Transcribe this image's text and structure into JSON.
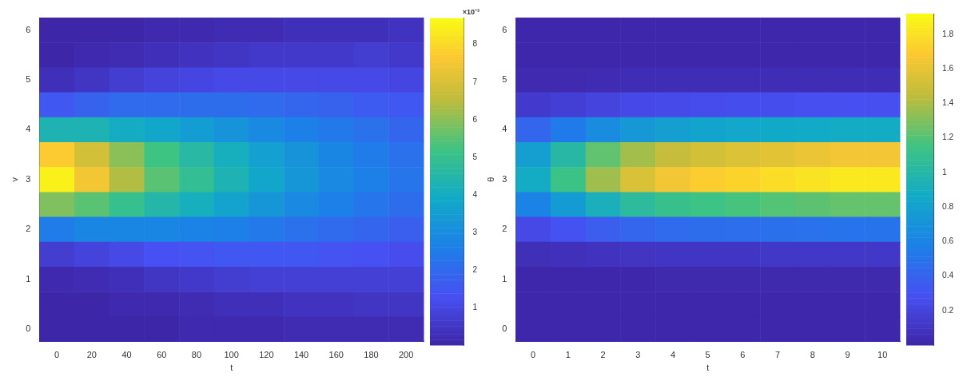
{
  "chart_data": [
    {
      "type": "heatmap",
      "xlabel": "t",
      "ylabel": "v",
      "clabel": "×10⁻³",
      "categories": [
        "0",
        "20",
        "40",
        "60",
        "80",
        "100",
        "120",
        "140",
        "160",
        "180",
        "200"
      ],
      "y_categories": [
        "6",
        null,
        "5",
        null,
        "4",
        null,
        "3",
        null,
        "2",
        null,
        "1",
        null,
        "0"
      ],
      "clim": [
        0,
        8.7
      ],
      "cticks": [
        1,
        2,
        3,
        4,
        5,
        6,
        7,
        8
      ],
      "cells": [
        [
          0.0,
          0.0,
          0.0,
          0.1,
          0.1,
          0.2,
          0.2,
          0.3,
          0.3,
          0.3,
          0.4
        ],
        [
          0.0,
          0.1,
          0.2,
          0.3,
          0.4,
          0.5,
          0.6,
          0.6,
          0.6,
          0.7,
          0.6
        ],
        [
          0.3,
          0.5,
          0.7,
          0.9,
          1.0,
          1.1,
          1.1,
          1.1,
          1.1,
          1.1,
          1.0
        ],
        [
          1.5,
          1.8,
          2.0,
          2.0,
          2.1,
          2.1,
          2.0,
          1.9,
          1.8,
          1.6,
          1.5
        ],
        [
          4.3,
          4.3,
          4.0,
          3.8,
          3.5,
          3.2,
          2.9,
          2.6,
          2.4,
          2.2,
          1.9
        ],
        [
          7.7,
          6.9,
          6.0,
          5.2,
          4.6,
          4.1,
          3.6,
          3.2,
          2.8,
          2.5,
          2.2
        ],
        [
          8.5,
          7.5,
          6.4,
          5.5,
          4.9,
          4.3,
          3.8,
          3.3,
          2.9,
          2.6,
          2.3
        ],
        [
          5.9,
          5.5,
          5.0,
          4.5,
          4.1,
          3.7,
          3.3,
          2.9,
          2.6,
          2.3,
          2.1
        ],
        [
          2.5,
          2.8,
          2.8,
          2.8,
          2.7,
          2.6,
          2.4,
          2.2,
          2.0,
          1.9,
          1.7
        ],
        [
          0.7,
          0.9,
          1.1,
          1.3,
          1.4,
          1.5,
          1.5,
          1.5,
          1.4,
          1.3,
          1.2
        ],
        [
          0.1,
          0.2,
          0.3,
          0.5,
          0.6,
          0.7,
          0.8,
          0.8,
          0.8,
          0.8,
          0.8
        ],
        [
          0.0,
          0.0,
          0.1,
          0.1,
          0.2,
          0.3,
          0.3,
          0.4,
          0.4,
          0.5,
          0.5
        ],
        [
          0.0,
          0.0,
          0.0,
          0.0,
          0.1,
          0.1,
          0.1,
          0.2,
          0.2,
          0.2,
          0.2
        ]
      ]
    },
    {
      "type": "heatmap",
      "xlabel": "t",
      "ylabel": "θ",
      "categories": [
        "0",
        "1",
        "2",
        "3",
        "4",
        "5",
        "6",
        "7",
        "8",
        "9",
        "10"
      ],
      "y_categories": [
        "6",
        null,
        "5",
        null,
        "4",
        null,
        "3",
        null,
        "2",
        null,
        "1",
        null,
        "0"
      ],
      "clim": [
        0,
        1.92
      ],
      "cticks": [
        0.2,
        0.4,
        0.6,
        0.8,
        1,
        1.2,
        1.4,
        1.6,
        1.8
      ],
      "cells": [
        [
          0.01,
          0.01,
          0.01,
          0.01,
          0.01,
          0.01,
          0.01,
          0.01,
          0.01,
          0.01,
          0.01
        ],
        [
          0.01,
          0.01,
          0.01,
          0.01,
          0.01,
          0.01,
          0.01,
          0.01,
          0.01,
          0.01,
          0.01
        ],
        [
          0.03,
          0.03,
          0.04,
          0.05,
          0.05,
          0.05,
          0.05,
          0.05,
          0.05,
          0.05,
          0.05
        ],
        [
          0.14,
          0.17,
          0.21,
          0.24,
          0.25,
          0.26,
          0.27,
          0.27,
          0.28,
          0.28,
          0.28
        ],
        [
          0.42,
          0.54,
          0.66,
          0.74,
          0.79,
          0.82,
          0.84,
          0.86,
          0.87,
          0.88,
          0.88
        ],
        [
          0.79,
          1.01,
          1.23,
          1.38,
          1.47,
          1.52,
          1.56,
          1.59,
          1.62,
          1.65,
          1.65
        ],
        [
          0.88,
          1.13,
          1.37,
          1.55,
          1.65,
          1.71,
          1.74,
          1.78,
          1.81,
          1.84,
          1.84
        ],
        [
          0.59,
          0.76,
          0.92,
          1.04,
          1.11,
          1.14,
          1.17,
          1.2,
          1.22,
          1.24,
          1.24
        ],
        [
          0.24,
          0.3,
          0.37,
          0.42,
          0.45,
          0.46,
          0.47,
          0.48,
          0.49,
          0.5,
          0.5
        ],
        [
          0.06,
          0.07,
          0.09,
          0.1,
          0.11,
          0.11,
          0.11,
          0.12,
          0.12,
          0.12,
          0.12
        ],
        [
          0.01,
          0.01,
          0.01,
          0.01,
          0.02,
          0.02,
          0.02,
          0.02,
          0.02,
          0.02,
          0.02
        ],
        [
          0.01,
          0.01,
          0.01,
          0.01,
          0.01,
          0.01,
          0.01,
          0.01,
          0.01,
          0.01,
          0.01
        ],
        [
          0.01,
          0.01,
          0.01,
          0.01,
          0.01,
          0.01,
          0.01,
          0.01,
          0.01,
          0.01,
          0.01
        ]
      ]
    }
  ]
}
